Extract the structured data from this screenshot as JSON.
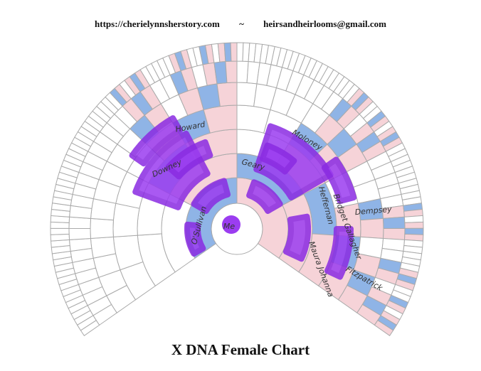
{
  "header": {
    "url": "https://cherielynnsherstory.com",
    "separator": "~",
    "email": "heirsandheirlooms@gmail.com"
  },
  "title": "X DNA Female Chart",
  "names": [
    "Me",
    "O'Sullivan",
    "Downey",
    "Howard",
    "Geary",
    "Moloney",
    "Heffernan",
    "Bridget Gallagher",
    "Maura Johanna",
    "Dempsey",
    "Fitzpatrick"
  ]
}
